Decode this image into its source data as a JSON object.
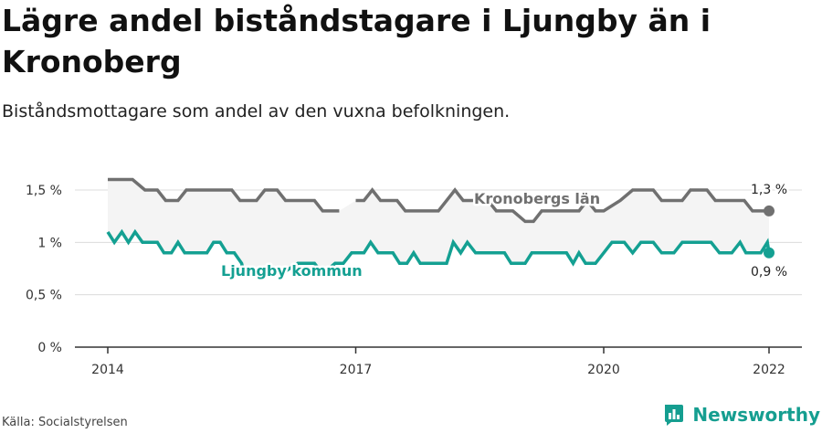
{
  "title": "Lägre andel biståndstagare i Ljungby än i Kronoberg",
  "subtitle": "Biståndsmottagare som andel av den vuxna befolkningen.",
  "source": "Källa: Socialstyrelsen",
  "brand": "Newsworthy",
  "colors": {
    "kronoberg": "#707070",
    "ljungby": "#14a092",
    "band": "#f4f4f4"
  },
  "chart_data": {
    "type": "line",
    "xlim": [
      2014,
      2022.1
    ],
    "ylim": [
      0,
      1.7
    ],
    "x_ticks": [
      {
        "value": 2014,
        "label": "2014"
      },
      {
        "value": 2017,
        "label": "2017"
      },
      {
        "value": 2020,
        "label": "2020"
      },
      {
        "value": 2022,
        "label": "2022"
      }
    ],
    "y_ticks": [
      {
        "value": 0,
        "label": "0 %"
      },
      {
        "value": 0.5,
        "label": "0,5 %"
      },
      {
        "value": 1.0,
        "label": "1 %"
      },
      {
        "value": 1.5,
        "label": "1,5 %"
      }
    ],
    "series": [
      {
        "name": "Kronobergs län",
        "end_label": "1,3 %",
        "points": [
          [
            2014.0,
            1.6
          ],
          [
            2014.3,
            1.6
          ],
          [
            2014.45,
            1.5
          ],
          [
            2014.6,
            1.5
          ],
          [
            2014.7,
            1.4
          ],
          [
            2014.85,
            1.4
          ],
          [
            2014.95,
            1.5
          ],
          [
            2015.5,
            1.5
          ],
          [
            2015.6,
            1.4
          ],
          [
            2015.8,
            1.4
          ],
          [
            2015.9,
            1.5
          ],
          [
            2016.05,
            1.5
          ],
          [
            2016.15,
            1.4
          ],
          [
            2016.5,
            1.4
          ],
          [
            2016.6,
            1.3
          ],
          [
            2016.8,
            1.3
          ],
          [
            2017.0,
            1.4
          ],
          [
            2017.1,
            1.4
          ],
          [
            2017.2,
            1.5
          ],
          [
            2017.3,
            1.4
          ],
          [
            2017.5,
            1.4
          ],
          [
            2017.6,
            1.3
          ],
          [
            2018.0,
            1.3
          ],
          [
            2018.2,
            1.5
          ],
          [
            2018.3,
            1.4
          ],
          [
            2018.6,
            1.4
          ],
          [
            2018.7,
            1.3
          ],
          [
            2018.9,
            1.3
          ],
          [
            2019.05,
            1.2
          ],
          [
            2019.15,
            1.2
          ],
          [
            2019.25,
            1.3
          ],
          [
            2019.7,
            1.3
          ],
          [
            2019.8,
            1.4
          ],
          [
            2019.9,
            1.3
          ],
          [
            2020.0,
            1.3
          ],
          [
            2020.2,
            1.4
          ],
          [
            2020.35,
            1.5
          ],
          [
            2020.6,
            1.5
          ],
          [
            2020.7,
            1.4
          ],
          [
            2020.95,
            1.4
          ],
          [
            2021.05,
            1.5
          ],
          [
            2021.25,
            1.5
          ],
          [
            2021.35,
            1.4
          ],
          [
            2021.7,
            1.4
          ],
          [
            2021.8,
            1.3
          ],
          [
            2022.0,
            1.3
          ]
        ],
        "gap_after_index": 15
      },
      {
        "name": "Ljungby kommun",
        "end_label": "0,9 %",
        "points": [
          [
            2014.0,
            1.1
          ],
          [
            2014.08,
            1.0
          ],
          [
            2014.17,
            1.1
          ],
          [
            2014.25,
            1.0
          ],
          [
            2014.33,
            1.1
          ],
          [
            2014.42,
            1.0
          ],
          [
            2014.6,
            1.0
          ],
          [
            2014.68,
            0.9
          ],
          [
            2014.77,
            0.9
          ],
          [
            2014.85,
            1.0
          ],
          [
            2014.93,
            0.9
          ],
          [
            2015.2,
            0.9
          ],
          [
            2015.28,
            1.0
          ],
          [
            2015.36,
            1.0
          ],
          [
            2015.44,
            0.9
          ],
          [
            2015.53,
            0.9
          ],
          [
            2015.62,
            0.8
          ],
          [
            2015.65,
            0.7
          ],
          [
            2016.1,
            0.7
          ],
          [
            2016.3,
            0.8
          ],
          [
            2016.5,
            0.8
          ],
          [
            2016.6,
            0.7
          ],
          [
            2016.75,
            0.8
          ],
          [
            2016.85,
            0.8
          ],
          [
            2016.95,
            0.9
          ],
          [
            2017.1,
            0.9
          ],
          [
            2017.18,
            1.0
          ],
          [
            2017.27,
            0.9
          ],
          [
            2017.45,
            0.9
          ],
          [
            2017.53,
            0.8
          ],
          [
            2017.62,
            0.8
          ],
          [
            2017.7,
            0.9
          ],
          [
            2017.78,
            0.8
          ],
          [
            2018.1,
            0.8
          ],
          [
            2018.18,
            1.0
          ],
          [
            2018.27,
            0.9
          ],
          [
            2018.35,
            1.0
          ],
          [
            2018.45,
            0.9
          ],
          [
            2018.8,
            0.9
          ],
          [
            2018.88,
            0.8
          ],
          [
            2019.05,
            0.8
          ],
          [
            2019.13,
            0.9
          ],
          [
            2019.55,
            0.9
          ],
          [
            2019.63,
            0.8
          ],
          [
            2019.7,
            0.9
          ],
          [
            2019.78,
            0.8
          ],
          [
            2019.9,
            0.8
          ],
          [
            2020.0,
            0.9
          ],
          [
            2020.1,
            1.0
          ],
          [
            2020.25,
            1.0
          ],
          [
            2020.35,
            0.9
          ],
          [
            2020.45,
            1.0
          ],
          [
            2020.6,
            1.0
          ],
          [
            2020.7,
            0.9
          ],
          [
            2020.85,
            0.9
          ],
          [
            2020.95,
            1.0
          ],
          [
            2021.3,
            1.0
          ],
          [
            2021.4,
            0.9
          ],
          [
            2021.55,
            0.9
          ],
          [
            2021.65,
            1.0
          ],
          [
            2021.72,
            0.9
          ],
          [
            2021.9,
            0.9
          ],
          [
            2021.98,
            1.0
          ],
          [
            2022.0,
            0.9
          ]
        ]
      }
    ]
  }
}
